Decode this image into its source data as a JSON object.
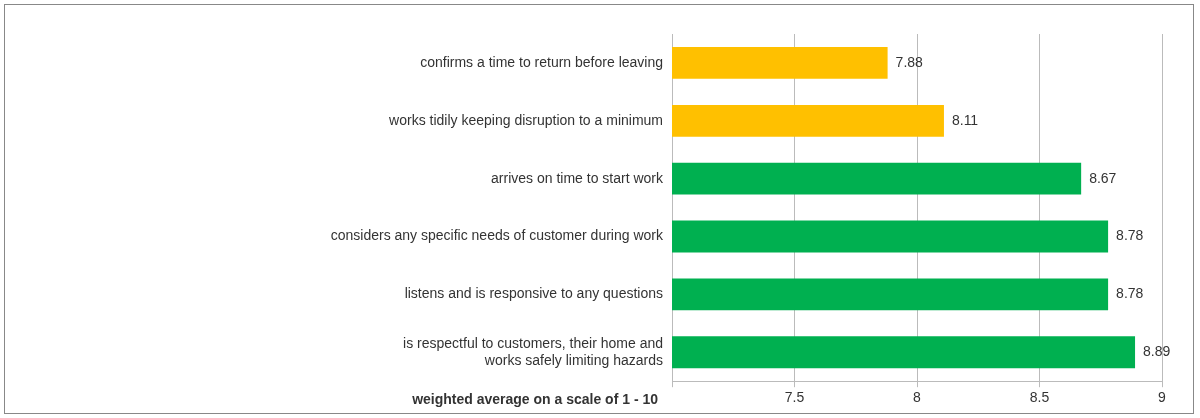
{
  "chart_data": {
    "type": "bar",
    "orientation": "horizontal",
    "xlabel": "weighted average on a scale of 1 - 10",
    "categories": [
      "confirms a time to return before leaving",
      "works tidily keeping disruption to a minimum",
      "arrives on time to start work",
      "considers any specific needs of customer during work",
      "listens and is responsive to any questions",
      "is respectful to customers, their home and works safely limiting hazards"
    ],
    "values": [
      7.88,
      8.11,
      8.67,
      8.78,
      8.78,
      8.89
    ],
    "colors": [
      "#ffc000",
      "#ffc000",
      "#00b050",
      "#00b050",
      "#00b050",
      "#00b050"
    ],
    "xlim": [
      7,
      9
    ],
    "xticks": [
      {
        "value": 7,
        "label": null
      },
      7.5,
      8,
      8.5,
      9
    ],
    "grid": "x",
    "data_labels": true
  }
}
